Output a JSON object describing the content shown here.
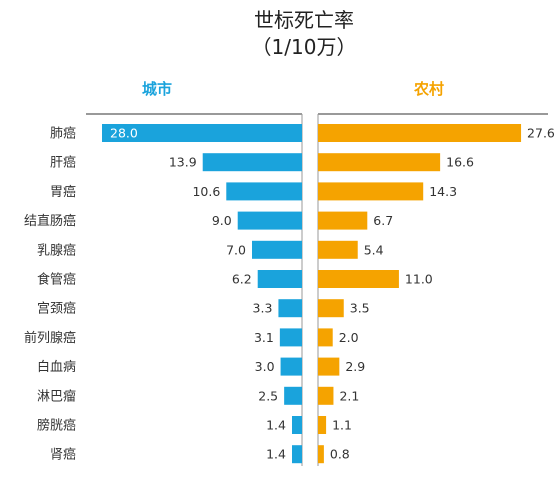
{
  "chart_data": {
    "type": "bar",
    "orientation": "horizontal-butterfly",
    "title_line1": "世标死亡率",
    "title_line2": "（1/10万）",
    "categories": [
      "肺癌",
      "肝癌",
      "胃癌",
      "结直肠癌",
      "乳腺癌",
      "食管癌",
      "宫颈癌",
      "前列腺癌",
      "白血病",
      "淋巴瘤",
      "膀胱癌",
      "肾癌"
    ],
    "series": [
      {
        "name": "城市",
        "color": "#1aa3dc",
        "values": [
          28.0,
          13.9,
          10.6,
          9.0,
          7.0,
          6.2,
          3.3,
          3.1,
          3.0,
          2.5,
          1.4,
          1.4
        ]
      },
      {
        "name": "农村",
        "color": "#f5a300",
        "values": [
          27.6,
          16.6,
          14.3,
          6.7,
          5.4,
          11.0,
          3.5,
          2.0,
          2.9,
          2.1,
          1.1,
          0.8
        ]
      }
    ],
    "xlim": [
      0,
      28
    ],
    "grid": false,
    "legend": "series names shown as panel headers above each side"
  }
}
